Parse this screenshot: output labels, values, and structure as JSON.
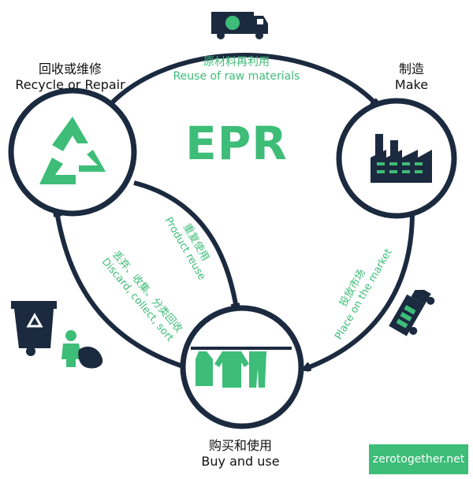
{
  "title": "EPR",
  "colors": {
    "accent": "#3dbd78",
    "dark": "#1b2a3f"
  },
  "nodes": {
    "recycle": {
      "zh": "回收或维修",
      "en": "Recycle or Repair",
      "icon": "recycle-icon"
    },
    "make": {
      "zh": "制造",
      "en": "Make",
      "icon": "factory-icon"
    },
    "buy": {
      "zh": "购买和使用",
      "en": "Buy and use",
      "icon": "clothes-rack-icon"
    }
  },
  "edges": {
    "raw": {
      "zh": "原材料再利用",
      "en": "Reuse of raw materials"
    },
    "reuse": {
      "zh": "重复使用",
      "en": "Product reuse"
    },
    "discard": {
      "zh": "丢弃、收集、分类回收",
      "en": "Discard, collect, sort"
    },
    "market": {
      "zh": "投放市场",
      "en": "Place on the market"
    }
  },
  "badge": "zerotogether.net"
}
